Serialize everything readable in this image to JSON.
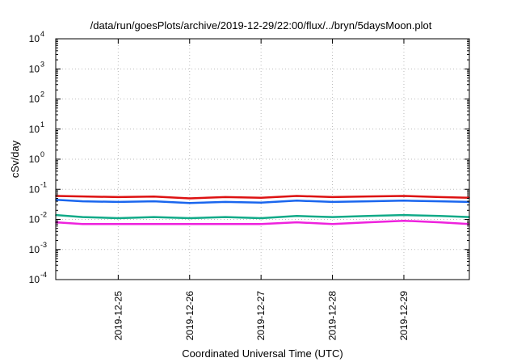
{
  "chart_data": {
    "type": "line",
    "title": "/data/run/goesPlots/archive/2019-12-29/22:00/flux/../bryn/5daysMoon.plot",
    "xlabel": "Coordinated Universal Time (UTC)",
    "ylabel": "cSv/day",
    "y_scale": "log",
    "ylim": [
      0.0001,
      10000
    ],
    "xlim": [
      "2019-12-24T03:00",
      "2019-12-29T22:00"
    ],
    "y_ticks": [
      {
        "base": "10",
        "exp": "-4",
        "value": 0.0001
      },
      {
        "base": "10",
        "exp": "-3",
        "value": 0.001
      },
      {
        "base": "10",
        "exp": "-2",
        "value": 0.01
      },
      {
        "base": "10",
        "exp": "-1",
        "value": 0.1
      },
      {
        "base": "10",
        "exp": "0",
        "value": 1
      },
      {
        "base": "10",
        "exp": "1",
        "value": 10
      },
      {
        "base": "10",
        "exp": "2",
        "value": 100
      },
      {
        "base": "10",
        "exp": "3",
        "value": 1000
      },
      {
        "base": "10",
        "exp": "4",
        "value": 10000
      }
    ],
    "x_ticks": [
      {
        "label": "2019-12-25",
        "value": "2019-12-25T00:00"
      },
      {
        "label": "2019-12-26",
        "value": "2019-12-26T00:00"
      },
      {
        "label": "2019-12-27",
        "value": "2019-12-27T00:00"
      },
      {
        "label": "2019-12-28",
        "value": "2019-12-28T00:00"
      },
      {
        "label": "2019-12-29",
        "value": "2019-12-29T00:00"
      }
    ],
    "grid": true,
    "series": [
      {
        "color": "#dd1111",
        "x": [
          "2019-12-24T03:00",
          "2019-12-24T12:00",
          "2019-12-25T00:00",
          "2019-12-25T12:00",
          "2019-12-26T00:00",
          "2019-12-26T12:00",
          "2019-12-27T00:00",
          "2019-12-27T12:00",
          "2019-12-28T00:00",
          "2019-12-28T12:00",
          "2019-12-29T00:00",
          "2019-12-29T12:00",
          "2019-12-29T22:00"
        ],
        "values": [
          0.06,
          0.058,
          0.055,
          0.057,
          0.05,
          0.055,
          0.052,
          0.06,
          0.055,
          0.058,
          0.06,
          0.055,
          0.052
        ]
      },
      {
        "color": "#1a66ee",
        "x": [
          "2019-12-24T03:00",
          "2019-12-24T12:00",
          "2019-12-25T00:00",
          "2019-12-25T12:00",
          "2019-12-26T00:00",
          "2019-12-26T12:00",
          "2019-12-27T00:00",
          "2019-12-27T12:00",
          "2019-12-28T00:00",
          "2019-12-28T12:00",
          "2019-12-29T00:00",
          "2019-12-29T12:00",
          "2019-12-29T22:00"
        ],
        "values": [
          0.045,
          0.04,
          0.038,
          0.04,
          0.035,
          0.038,
          0.036,
          0.042,
          0.038,
          0.04,
          0.042,
          0.04,
          0.038
        ]
      },
      {
        "color": "#11aa88",
        "x": [
          "2019-12-24T03:00",
          "2019-12-24T12:00",
          "2019-12-25T00:00",
          "2019-12-25T12:00",
          "2019-12-26T00:00",
          "2019-12-26T12:00",
          "2019-12-27T00:00",
          "2019-12-27T12:00",
          "2019-12-28T00:00",
          "2019-12-28T12:00",
          "2019-12-29T00:00",
          "2019-12-29T12:00",
          "2019-12-29T22:00"
        ],
        "values": [
          0.014,
          0.012,
          0.011,
          0.012,
          0.011,
          0.012,
          0.011,
          0.013,
          0.012,
          0.013,
          0.014,
          0.013,
          0.012
        ]
      },
      {
        "color": "#ee22dd",
        "x": [
          "2019-12-24T03:00",
          "2019-12-24T12:00",
          "2019-12-25T00:00",
          "2019-12-25T12:00",
          "2019-12-26T00:00",
          "2019-12-26T12:00",
          "2019-12-27T00:00",
          "2019-12-27T12:00",
          "2019-12-28T00:00",
          "2019-12-28T12:00",
          "2019-12-29T00:00",
          "2019-12-29T12:00",
          "2019-12-29T22:00"
        ],
        "values": [
          0.008,
          0.007,
          0.007,
          0.007,
          0.007,
          0.007,
          0.007,
          0.008,
          0.007,
          0.008,
          0.009,
          0.008,
          0.007
        ]
      }
    ]
  }
}
